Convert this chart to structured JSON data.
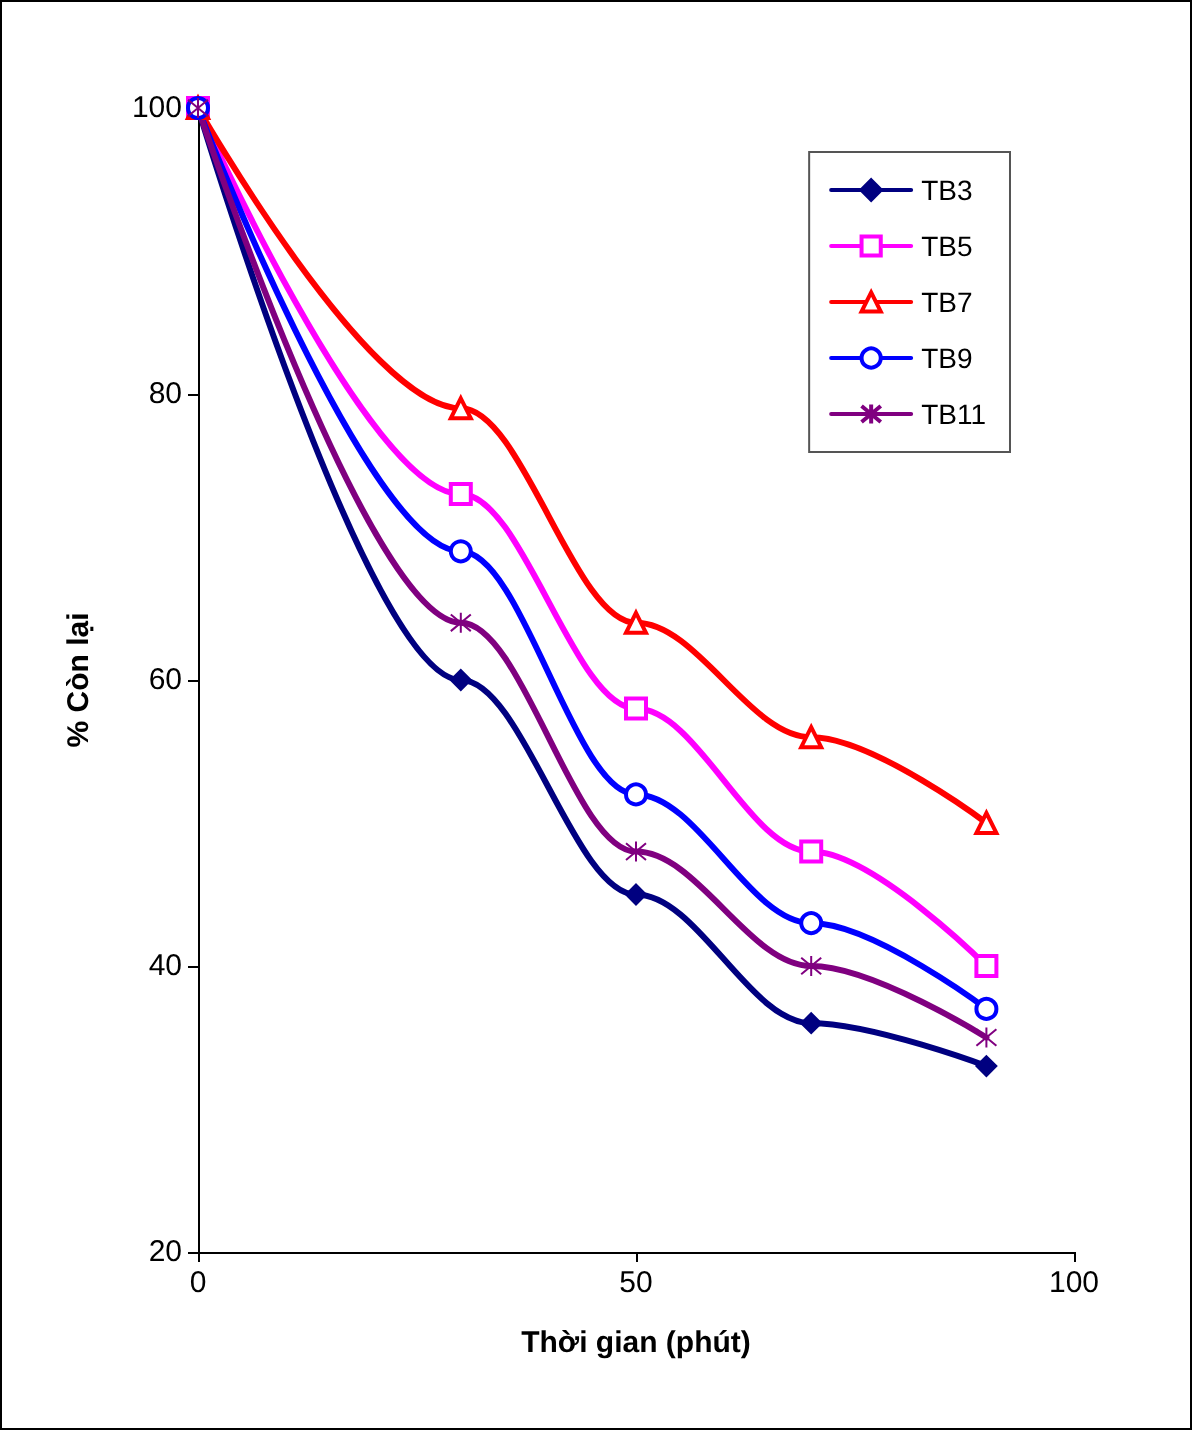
{
  "chart_data": {
    "type": "line",
    "xlabel": "Thời gian (phút)",
    "ylabel": "% Còn lại",
    "x": [
      0,
      30,
      50,
      70,
      90
    ],
    "series": [
      {
        "name": "TB3",
        "color": "#000080",
        "marker": "diamond",
        "values": [
          100,
          60,
          45,
          36,
          33
        ]
      },
      {
        "name": "TB5",
        "color": "#ff00ff",
        "marker": "square",
        "values": [
          100,
          73,
          58,
          48,
          40
        ]
      },
      {
        "name": "TB7",
        "color": "#ff0000",
        "marker": "triangle",
        "values": [
          100,
          79,
          64,
          56,
          50
        ]
      },
      {
        "name": "TB9",
        "color": "#0000ff",
        "marker": "circle",
        "values": [
          100,
          69,
          52,
          43,
          37
        ]
      },
      {
        "name": "TB11",
        "color": "#800080",
        "marker": "cross",
        "values": [
          100,
          64,
          48,
          40,
          35
        ]
      }
    ],
    "xlim": [
      0,
      100
    ],
    "xticks": [
      0,
      50,
      100
    ],
    "ylim": [
      20,
      100
    ],
    "yticks": [
      20,
      40,
      60,
      80,
      100
    ],
    "grid": false,
    "legend": "top right",
    "line_style": "solid"
  }
}
